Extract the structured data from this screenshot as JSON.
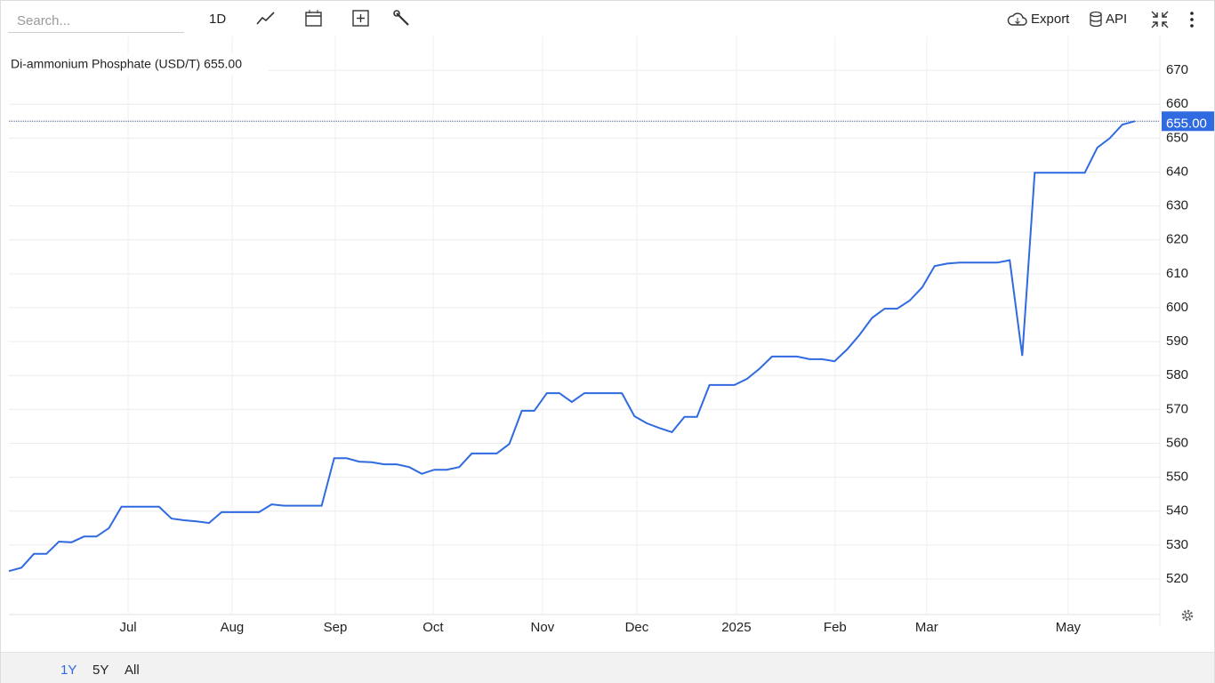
{
  "toolbar": {
    "search_placeholder": "Search...",
    "interval": "1D",
    "export": "Export",
    "api": "API"
  },
  "range_buttons": [
    "1Y",
    "5Y",
    "All"
  ],
  "chart_data": {
    "type": "line",
    "series": [
      {
        "name": "Di-ammonium Phosphate (USD/T)",
        "color": "#2f6ae0",
        "values": [
          522.3,
          523.3,
          527.4,
          527.4,
          531,
          530.8,
          532.5,
          532.5,
          535,
          541.3,
          541.3,
          541.3,
          541.3,
          537.8,
          537.3,
          537,
          536.5,
          539.7,
          539.7,
          539.7,
          539.7,
          542,
          541.6,
          541.6,
          541.6,
          541.6,
          555.6,
          555.6,
          554.6,
          554.4,
          553.8,
          553.8,
          553,
          551,
          552.2,
          552.2,
          553,
          557,
          557,
          557,
          559.8,
          569.6,
          569.6,
          574.8,
          574.8,
          572.2,
          574.8,
          574.8,
          574.8,
          574.8,
          568,
          565.9,
          564.5,
          563.3,
          567.8,
          567.8,
          577.2,
          577.2,
          577.2,
          579,
          582,
          585.6,
          585.6,
          585.6,
          584.8,
          584.8,
          584.2,
          587.7,
          592,
          597,
          599.7,
          599.7,
          602.1,
          606,
          612.3,
          613,
          613.3,
          613.3,
          613.3,
          613.3,
          614,
          585.8,
          639.8,
          639.8,
          639.8,
          639.8,
          639.8,
          647.2,
          650,
          654,
          655
        ]
      }
    ],
    "last_price": {
      "value": 655,
      "label": "655.00"
    },
    "xlim": [
      0,
      92
    ],
    "xticks": [
      {
        "value": 9.53,
        "label": "Jul"
      },
      {
        "value": 17.84,
        "label": "Aug"
      },
      {
        "value": 26.09,
        "label": "Sep"
      },
      {
        "value": 33.91,
        "label": "Oct"
      },
      {
        "value": 42.65,
        "label": "Nov"
      },
      {
        "value": 50.19,
        "label": "Dec"
      },
      {
        "value": 58.15,
        "label": "2025"
      },
      {
        "value": 66.04,
        "label": "Feb"
      },
      {
        "value": 73.36,
        "label": "Mar"
      },
      {
        "value": 84.67,
        "label": "May"
      }
    ],
    "ylim": [
      509.5,
      680
    ],
    "yticks": [
      520,
      530,
      540,
      550,
      560,
      570,
      580,
      590,
      600,
      610,
      620,
      630,
      640,
      650,
      660,
      670
    ],
    "grid": true
  }
}
